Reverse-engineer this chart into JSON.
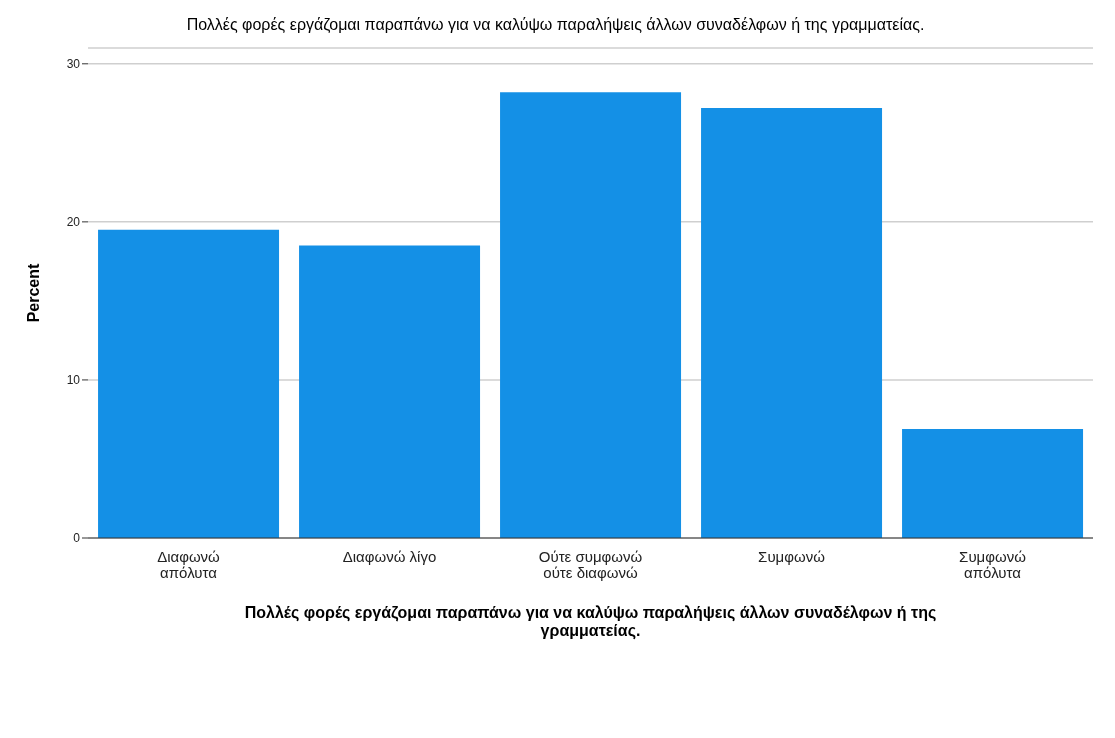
{
  "chart_data": {
    "type": "bar",
    "title": "Πολλές φορές εργάζομαι παραπάνω για να καλύψω παραλήψεις άλλων συναδέλφων ή της γραμματείας.",
    "xlabel": "Πολλές φορές εργάζομαι παραπάνω για να καλύψω παραλήψεις άλλων συναδέλφων ή της γραμματείας.",
    "ylabel": "Percent",
    "categories": [
      "Διαφωνώ απόλυτα",
      "Διαφωνώ λίγο",
      "Ούτε συμφωνώ ούτε διαφωνώ",
      "Συμφωνώ",
      "Συμφωνώ απόλυτα"
    ],
    "values": [
      19.5,
      18.5,
      28.2,
      27.2,
      6.9
    ],
    "color": "#1490e6",
    "ylim": [
      0,
      31
    ],
    "yticks": [
      0,
      10,
      20,
      30
    ],
    "grid": "y"
  }
}
